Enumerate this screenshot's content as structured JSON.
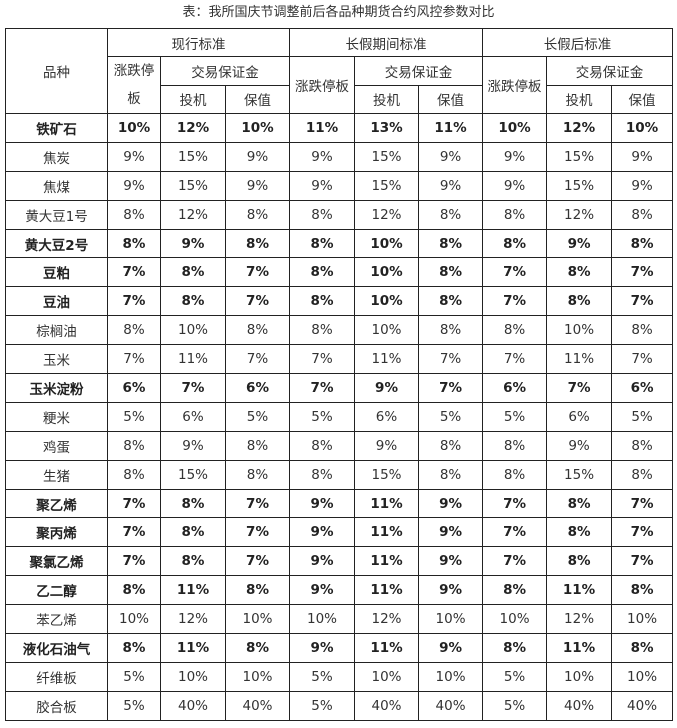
{
  "title": "表：我所国庆节调整前后各品种期货合约风控参数对比",
  "header": {
    "variety": "品种",
    "groups": [
      "现行标准",
      "长假期间标准",
      "长假后标准"
    ],
    "limit_wrapped": [
      "涨跌停",
      "板"
    ],
    "limit": "涨跌停板",
    "margin": "交易保证金",
    "spec": "投机",
    "hedge": "保值"
  },
  "rows": [
    {
      "name": "铁矿石",
      "bold": true,
      "values": [
        "10%",
        "12%",
        "10%",
        "11%",
        "13%",
        "11%",
        "10%",
        "12%",
        "10%"
      ]
    },
    {
      "name": "焦炭",
      "bold": false,
      "values": [
        "9%",
        "15%",
        "9%",
        "9%",
        "15%",
        "9%",
        "9%",
        "15%",
        "9%"
      ]
    },
    {
      "name": "焦煤",
      "bold": false,
      "values": [
        "9%",
        "15%",
        "9%",
        "9%",
        "15%",
        "9%",
        "9%",
        "15%",
        "9%"
      ]
    },
    {
      "name": "黄大豆1号",
      "bold": false,
      "values": [
        "8%",
        "12%",
        "8%",
        "8%",
        "12%",
        "8%",
        "8%",
        "12%",
        "8%"
      ]
    },
    {
      "name": "黄大豆2号",
      "bold": true,
      "values": [
        "8%",
        "9%",
        "8%",
        "8%",
        "10%",
        "8%",
        "8%",
        "9%",
        "8%"
      ]
    },
    {
      "name": "豆粕",
      "bold": true,
      "values": [
        "7%",
        "8%",
        "7%",
        "8%",
        "10%",
        "8%",
        "7%",
        "8%",
        "7%"
      ]
    },
    {
      "name": "豆油",
      "bold": true,
      "values": [
        "7%",
        "8%",
        "7%",
        "8%",
        "10%",
        "8%",
        "7%",
        "8%",
        "7%"
      ]
    },
    {
      "name": "棕榈油",
      "bold": false,
      "values": [
        "8%",
        "10%",
        "8%",
        "8%",
        "10%",
        "8%",
        "8%",
        "10%",
        "8%"
      ]
    },
    {
      "name": "玉米",
      "bold": false,
      "values": [
        "7%",
        "11%",
        "7%",
        "7%",
        "11%",
        "7%",
        "7%",
        "11%",
        "7%"
      ]
    },
    {
      "name": "玉米淀粉",
      "bold": true,
      "values": [
        "6%",
        "7%",
        "6%",
        "7%",
        "9%",
        "7%",
        "6%",
        "7%",
        "6%"
      ]
    },
    {
      "name": "粳米",
      "bold": false,
      "values": [
        "5%",
        "6%",
        "5%",
        "5%",
        "6%",
        "5%",
        "5%",
        "6%",
        "5%"
      ]
    },
    {
      "name": "鸡蛋",
      "bold": false,
      "values": [
        "8%",
        "9%",
        "8%",
        "8%",
        "9%",
        "8%",
        "8%",
        "9%",
        "8%"
      ]
    },
    {
      "name": "生猪",
      "bold": false,
      "values": [
        "8%",
        "15%",
        "8%",
        "8%",
        "15%",
        "8%",
        "8%",
        "15%",
        "8%"
      ]
    },
    {
      "name": "聚乙烯",
      "bold": true,
      "values": [
        "7%",
        "8%",
        "7%",
        "9%",
        "11%",
        "9%",
        "7%",
        "8%",
        "7%"
      ]
    },
    {
      "name": "聚丙烯",
      "bold": true,
      "values": [
        "7%",
        "8%",
        "7%",
        "9%",
        "11%",
        "9%",
        "7%",
        "8%",
        "7%"
      ]
    },
    {
      "name": "聚氯乙烯",
      "bold": true,
      "values": [
        "7%",
        "8%",
        "7%",
        "9%",
        "11%",
        "9%",
        "7%",
        "8%",
        "7%"
      ]
    },
    {
      "name": "乙二醇",
      "bold": true,
      "values": [
        "8%",
        "11%",
        "8%",
        "9%",
        "11%",
        "9%",
        "8%",
        "11%",
        "8%"
      ]
    },
    {
      "name": "苯乙烯",
      "bold": false,
      "values": [
        "10%",
        "12%",
        "10%",
        "10%",
        "12%",
        "10%",
        "10%",
        "12%",
        "10%"
      ]
    },
    {
      "name": "液化石油气",
      "bold": true,
      "values": [
        "8%",
        "11%",
        "8%",
        "9%",
        "11%",
        "9%",
        "8%",
        "11%",
        "8%"
      ]
    },
    {
      "name": "纤维板",
      "bold": false,
      "values": [
        "5%",
        "10%",
        "10%",
        "5%",
        "10%",
        "10%",
        "5%",
        "10%",
        "10%"
      ]
    },
    {
      "name": "胶合板",
      "bold": false,
      "values": [
        "5%",
        "40%",
        "40%",
        "5%",
        "40%",
        "40%",
        "5%",
        "40%",
        "40%"
      ]
    }
  ]
}
